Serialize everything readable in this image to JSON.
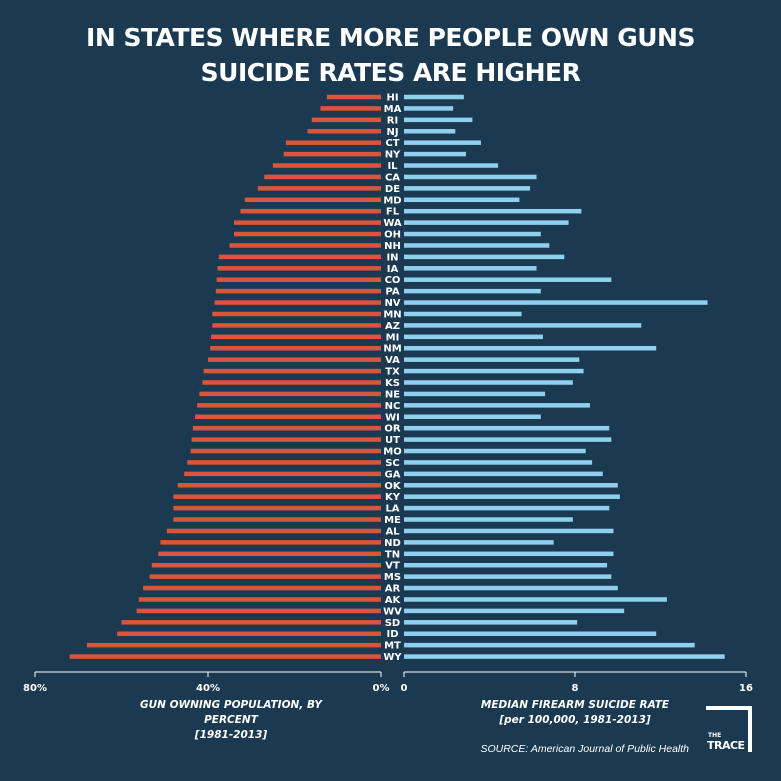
{
  "title": [
    "IN STATES WHERE MORE PEOPLE OWN GUNS",
    "SUICIDE RATES ARE HIGHER"
  ],
  "colors": {
    "background": "#1b3a52",
    "gun_ownership": "#d9553b",
    "suicide_rate": "#8fd0ee",
    "text": "#ffffff"
  },
  "left_axis": {
    "ticks": [
      "80%",
      "40%",
      "0%"
    ],
    "title": "GUN OWNING POPULATION, BY PERCENT",
    "subtitle": "[1981-2013]"
  },
  "right_axis": {
    "ticks": [
      "0",
      "8",
      "16"
    ],
    "title": "MEDIAN FIREARM SUICIDE RATE",
    "subtitle": "[per 100,000, 1981-2013]"
  },
  "source": "SOURCE: American Journal of Public Health",
  "logo": {
    "the": "THE",
    "trace": "TRACE"
  },
  "chart_data": {
    "type": "bar",
    "layout": "back-to-back horizontal",
    "categories": [
      "HI",
      "MA",
      "RI",
      "NJ",
      "CT",
      "NY",
      "IL",
      "CA",
      "DE",
      "MD",
      "FL",
      "WA",
      "OH",
      "NH",
      "IN",
      "IA",
      "CO",
      "PA",
      "NV",
      "MN",
      "AZ",
      "MI",
      "NM",
      "VA",
      "TX",
      "KS",
      "NE",
      "NC",
      "WI",
      "OR",
      "UT",
      "MO",
      "SC",
      "GA",
      "OK",
      "KY",
      "LA",
      "ME",
      "AL",
      "ND",
      "TN",
      "VT",
      "MS",
      "AR",
      "AK",
      "WV",
      "SD",
      "ID",
      "MT",
      "WY"
    ],
    "series": [
      {
        "axis": "left",
        "values": [
          12.5,
          14.0,
          16.0,
          17.0,
          22.0,
          22.5,
          25.0,
          27.0,
          28.5,
          31.5,
          32.5,
          34.0,
          34.0,
          35.0,
          37.5,
          37.8,
          38.0,
          38.2,
          38.5,
          39.0,
          39.0,
          39.3,
          39.5,
          40.0,
          41.0,
          41.3,
          42.0,
          42.5,
          43.0,
          43.5,
          43.8,
          44.0,
          44.8,
          45.5,
          47.0,
          48.0,
          48.0,
          48.0,
          49.5,
          51.0,
          51.5,
          53.0,
          53.5,
          55.0,
          56.0,
          56.5,
          60.0,
          61.0,
          68.0,
          72.0
        ],
        "xlim": [
          0,
          80
        ]
      },
      {
        "axis": "right",
        "values": [
          2.8,
          2.3,
          3.2,
          2.4,
          3.6,
          2.9,
          4.4,
          6.2,
          5.9,
          5.4,
          8.3,
          7.7,
          6.4,
          6.8,
          7.5,
          6.2,
          9.7,
          6.4,
          14.2,
          5.5,
          11.1,
          6.5,
          11.8,
          8.2,
          8.4,
          7.9,
          6.6,
          8.7,
          6.4,
          9.6,
          9.7,
          8.5,
          8.8,
          9.3,
          10.0,
          10.1,
          9.6,
          7.9,
          9.8,
          7.0,
          9.8,
          9.5,
          9.7,
          10.0,
          12.3,
          10.3,
          8.1,
          11.8,
          13.6,
          15.0
        ],
        "xlim": [
          0,
          16
        ]
      }
    ]
  }
}
